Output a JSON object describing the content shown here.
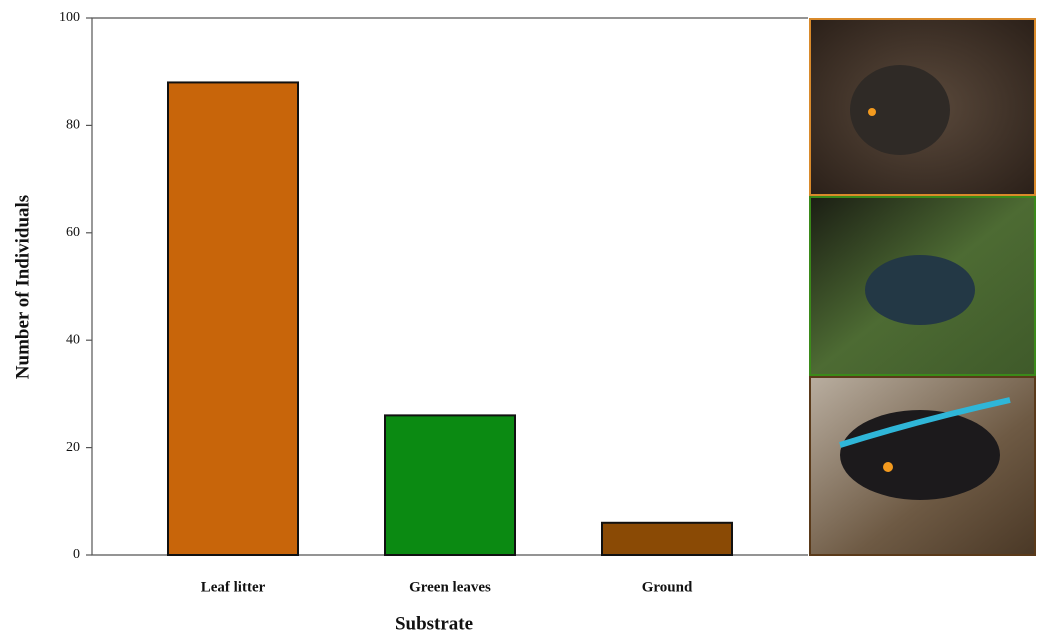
{
  "chart_data": {
    "type": "bar",
    "x_label": "Substrate",
    "y_label": "Number of Individuals",
    "categories": [
      "Leaf litter",
      "Green leaves",
      "Ground"
    ],
    "values": [
      88,
      26,
      6
    ],
    "colors": [
      "#c8650a",
      "#0b8a12",
      "#8a4a05"
    ],
    "ylim": [
      0,
      100
    ],
    "yticks": [
      0,
      20,
      40,
      60,
      80,
      100
    ],
    "grid": false
  }
}
